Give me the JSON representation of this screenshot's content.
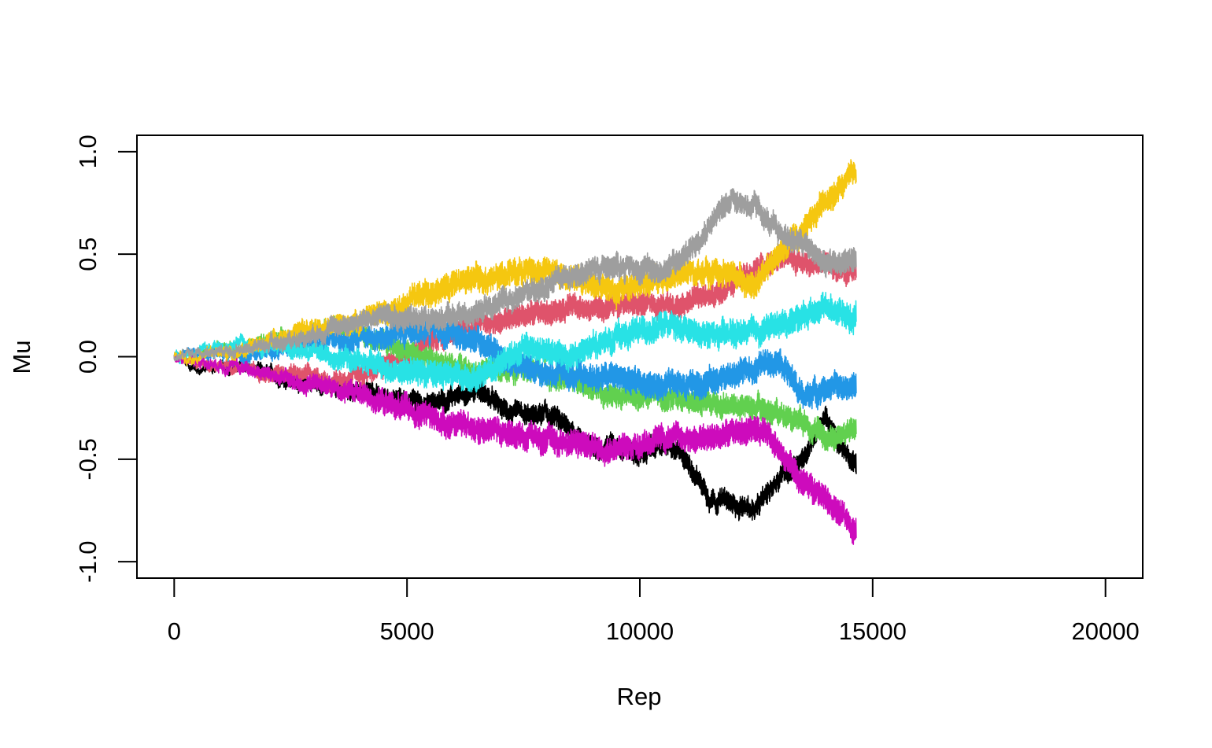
{
  "chart_data": {
    "type": "line",
    "title": "",
    "xlabel": "Rep",
    "ylabel": "Mu",
    "xlim": [
      -800,
      20800
    ],
    "ylim": [
      -1.08,
      1.08
    ],
    "x_ticks": [
      0,
      5000,
      10000,
      15000,
      20000
    ],
    "x_tick_labels": [
      "0",
      "5000",
      "10000",
      "15000",
      "20000"
    ],
    "y_ticks": [
      -1.0,
      -0.5,
      0.0,
      0.5,
      1.0
    ],
    "y_tick_labels": [
      "-1.0",
      "-0.5",
      "0.0",
      "0.5",
      "1.0"
    ],
    "grid": false,
    "legend": "none",
    "series": [
      {
        "color": "#000000",
        "noise": 0.035,
        "x": [
          0,
          500,
          1500,
          2500,
          3500,
          4500,
          5500,
          6500,
          7000,
          7500,
          8000,
          8500,
          9000,
          9500,
          10000,
          10500,
          11000,
          11500,
          12000,
          12500,
          13000,
          13500,
          14000,
          14650
        ],
        "y": [
          0,
          -0.06,
          -0.05,
          -0.12,
          -0.15,
          -0.2,
          -0.23,
          -0.15,
          -0.25,
          -0.3,
          -0.28,
          -0.35,
          -0.45,
          -0.42,
          -0.48,
          -0.42,
          -0.5,
          -0.68,
          -0.72,
          -0.75,
          -0.58,
          -0.5,
          -0.3,
          -0.55
        ]
      },
      {
        "color": "#DF536B",
        "noise": 0.04,
        "x": [
          0,
          500,
          1500,
          2500,
          3500,
          4500,
          5500,
          6500,
          7500,
          8500,
          9500,
          10500,
          11500,
          12500,
          13000,
          13500,
          14000,
          14650
        ],
        "y": [
          0,
          -0.03,
          -0.06,
          -0.08,
          -0.12,
          -0.05,
          0.08,
          0.15,
          0.2,
          0.23,
          0.26,
          0.25,
          0.3,
          0.42,
          0.5,
          0.45,
          0.45,
          0.42
        ]
      },
      {
        "color": "#61D04F",
        "noise": 0.04,
        "x": [
          0,
          500,
          1500,
          2500,
          3500,
          4500,
          5500,
          6500,
          7500,
          8500,
          9500,
          10500,
          11500,
          12500,
          13500,
          14000,
          14650
        ],
        "y": [
          0,
          0.03,
          0.05,
          0.1,
          0.15,
          0.08,
          -0.02,
          -0.08,
          -0.05,
          -0.12,
          -0.2,
          -0.2,
          -0.22,
          -0.25,
          -0.3,
          -0.4,
          -0.35
        ]
      },
      {
        "color": "#2297E6",
        "noise": 0.045,
        "x": [
          0,
          500,
          1500,
          2500,
          3500,
          4500,
          5500,
          6500,
          7500,
          8500,
          9500,
          10500,
          11500,
          12500,
          13000,
          13500,
          14000,
          14650
        ],
        "y": [
          0,
          0.02,
          0.0,
          0.05,
          0.08,
          0.1,
          0.15,
          0.08,
          -0.05,
          -0.1,
          -0.1,
          -0.15,
          -0.12,
          -0.05,
          0.0,
          -0.2,
          -0.15,
          -0.15
        ]
      },
      {
        "color": "#28E2E5",
        "noise": 0.045,
        "x": [
          0,
          500,
          1500,
          2500,
          3500,
          4500,
          5500,
          6500,
          7500,
          8500,
          9500,
          10500,
          11500,
          12500,
          13500,
          14000,
          14650
        ],
        "y": [
          0,
          0.03,
          0.06,
          0.05,
          0.0,
          -0.05,
          -0.08,
          -0.1,
          0.05,
          0.0,
          0.1,
          0.15,
          0.1,
          0.12,
          0.2,
          0.25,
          0.18
        ]
      },
      {
        "color": "#CD0BBC",
        "noise": 0.045,
        "x": [
          0,
          500,
          1500,
          2500,
          3500,
          4500,
          5500,
          6500,
          7500,
          8500,
          9500,
          10500,
          11500,
          12500,
          13000,
          13500,
          14000,
          14650
        ],
        "y": [
          0,
          -0.02,
          -0.05,
          -0.12,
          -0.15,
          -0.22,
          -0.3,
          -0.35,
          -0.38,
          -0.42,
          -0.45,
          -0.4,
          -0.4,
          -0.35,
          -0.45,
          -0.6,
          -0.7,
          -0.85
        ]
      },
      {
        "color": "#F5C710",
        "noise": 0.045,
        "x": [
          0,
          500,
          1500,
          2500,
          3500,
          4500,
          5500,
          6500,
          7500,
          8500,
          9500,
          10500,
          11500,
          12000,
          12500,
          13000,
          13500,
          14000,
          14650
        ],
        "y": [
          0,
          0.01,
          0.03,
          0.12,
          0.15,
          0.22,
          0.32,
          0.38,
          0.42,
          0.4,
          0.32,
          0.38,
          0.42,
          0.4,
          0.35,
          0.5,
          0.62,
          0.75,
          0.9
        ]
      },
      {
        "color": "#9E9E9E",
        "noise": 0.04,
        "x": [
          0,
          500,
          1500,
          2500,
          3500,
          4500,
          5500,
          6500,
          7500,
          8500,
          9500,
          10500,
          11000,
          11500,
          12000,
          12500,
          13000,
          13500,
          14000,
          14650
        ],
        "y": [
          0,
          0.02,
          0.04,
          0.08,
          0.15,
          0.2,
          0.18,
          0.22,
          0.3,
          0.4,
          0.45,
          0.42,
          0.5,
          0.65,
          0.78,
          0.72,
          0.6,
          0.55,
          0.45,
          0.48
        ]
      }
    ]
  }
}
